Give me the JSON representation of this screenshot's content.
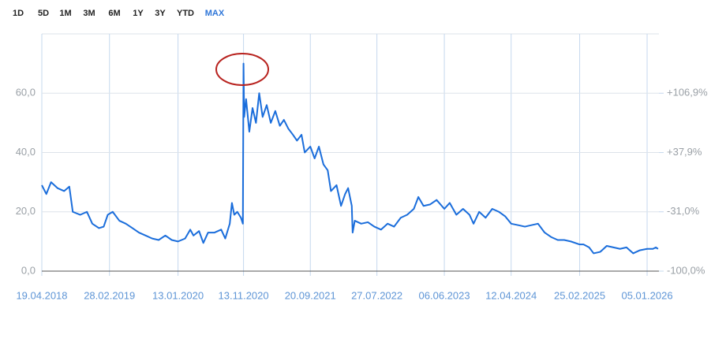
{
  "toolbar": {
    "buttons": [
      "1D",
      "5D",
      "1M",
      "3M",
      "6M",
      "1Y",
      "3Y",
      "YTD",
      "MAX"
    ],
    "selected": 8
  },
  "chart_data": {
    "type": "line",
    "x": [
      "2018-04-19",
      "2018-05-10",
      "2018-06-01",
      "2018-07-01",
      "2018-08-01",
      "2018-08-25",
      "2018-09-10",
      "2018-10-15",
      "2018-11-15",
      "2018-12-10",
      "2019-01-10",
      "2019-02-01",
      "2019-02-20",
      "2019-03-15",
      "2019-04-15",
      "2019-05-15",
      "2019-06-15",
      "2019-07-15",
      "2019-08-15",
      "2019-09-15",
      "2019-10-15",
      "2019-11-15",
      "2019-12-15",
      "2020-01-13",
      "2020-02-15",
      "2020-03-10",
      "2020-03-25",
      "2020-04-20",
      "2020-05-10",
      "2020-06-01",
      "2020-07-01",
      "2020-08-01",
      "2020-08-20",
      "2020-09-10",
      "2020-09-20",
      "2020-10-01",
      "2020-10-15",
      "2020-11-01",
      "2020-11-10",
      "2020-11-13",
      "2020-11-16",
      "2020-11-25",
      "2020-12-10",
      "2020-12-25",
      "2021-01-10",
      "2021-01-25",
      "2021-02-10",
      "2021-03-01",
      "2021-03-20",
      "2021-04-10",
      "2021-05-01",
      "2021-05-20",
      "2021-06-10",
      "2021-07-01",
      "2021-07-20",
      "2021-08-10",
      "2021-08-25",
      "2021-09-20",
      "2021-10-10",
      "2021-10-30",
      "2021-11-20",
      "2021-12-10",
      "2021-12-25",
      "2022-01-20",
      "2022-02-10",
      "2022-03-01",
      "2022-03-15",
      "2022-04-01",
      "2022-04-05",
      "2022-04-15",
      "2022-05-15",
      "2022-06-15",
      "2022-07-15",
      "2022-08-15",
      "2022-09-15",
      "2022-10-15",
      "2022-11-15",
      "2022-12-15",
      "2023-01-15",
      "2023-02-05",
      "2023-03-01",
      "2023-04-01",
      "2023-05-01",
      "2023-06-06",
      "2023-07-01",
      "2023-08-01",
      "2023-09-01",
      "2023-10-01",
      "2023-10-20",
      "2023-11-15",
      "2023-12-15",
      "2024-01-15",
      "2024-02-15",
      "2024-03-15",
      "2024-04-12",
      "2024-05-15",
      "2024-06-15",
      "2024-07-15",
      "2024-08-15",
      "2024-09-15",
      "2024-10-15",
      "2024-11-15",
      "2024-12-15",
      "2025-01-15",
      "2025-02-25",
      "2025-03-15",
      "2025-04-10",
      "2025-05-01",
      "2025-06-01",
      "2025-07-01",
      "2025-08-01",
      "2025-09-01",
      "2025-10-01",
      "2025-11-01",
      "2025-12-01",
      "2026-01-05",
      "2026-02-01",
      "2026-02-15",
      "2026-02-25"
    ],
    "series": [
      {
        "color": "#1a6ddb",
        "values": [
          29,
          26,
          30,
          28,
          27,
          28.5,
          20,
          19,
          20,
          16,
          14.5,
          15,
          19,
          20,
          17,
          16,
          14.5,
          13,
          12,
          11,
          10.5,
          12,
          10.5,
          10,
          11,
          14,
          12,
          13.5,
          9.5,
          13,
          13,
          14,
          11,
          16,
          23,
          19,
          20,
          18,
          16,
          70,
          52,
          58,
          47,
          55,
          50,
          60,
          52,
          56,
          50,
          54,
          49,
          51,
          48,
          46,
          44,
          46,
          40,
          42,
          38,
          42,
          36,
          34,
          27,
          29,
          22,
          26,
          28,
          22,
          13,
          17,
          16,
          16.5,
          15,
          14,
          16,
          15,
          18,
          19,
          21,
          25,
          22,
          22.5,
          24,
          21,
          23,
          19,
          21,
          19,
          16,
          20,
          18,
          21,
          20,
          18.5,
          16,
          15.5,
          15,
          15.5,
          16,
          13,
          11.5,
          10.5,
          10.5,
          10,
          9,
          9,
          8,
          6,
          6.5,
          8.5,
          8,
          7.5,
          8,
          6,
          7,
          7.5,
          7.5,
          8,
          7.5
        ]
      }
    ],
    "xlim": [
      "2018-04-19",
      "2026-03-01"
    ],
    "xticks": [
      {
        "value": "2018-04-19",
        "label": "19.04.2018"
      },
      {
        "value": "2019-02-28",
        "label": "28.02.2019"
      },
      {
        "value": "2020-01-13",
        "label": "13.01.2020"
      },
      {
        "value": "2020-11-13",
        "label": "13.11.2020"
      },
      {
        "value": "2021-09-20",
        "label": "20.09.2021"
      },
      {
        "value": "2022-07-27",
        "label": "27.07.2022"
      },
      {
        "value": "2023-06-06",
        "label": "06.06.2023"
      },
      {
        "value": "2024-04-12",
        "label": "12.04.2024"
      },
      {
        "value": "2025-02-25",
        "label": "25.02.2025"
      },
      {
        "value": "2026-01-05",
        "label": "05.01.2026"
      }
    ],
    "ylim": [
      0,
      80
    ],
    "yticks": [
      {
        "value": 0,
        "label": "0,0"
      },
      {
        "value": 20,
        "label": "20,0"
      },
      {
        "value": 40,
        "label": "40,0"
      },
      {
        "value": 60,
        "label": "60,0"
      }
    ],
    "y2lim": [
      -100,
      175.9
    ],
    "y2ticks": [
      {
        "value": -100,
        "label": "-100,0%"
      },
      {
        "value": -31,
        "label": "-31,0%"
      },
      {
        "value": 37.9,
        "label": "+37,9%"
      },
      {
        "value": 106.9,
        "label": "+106,9%"
      }
    ],
    "grid": true
  }
}
